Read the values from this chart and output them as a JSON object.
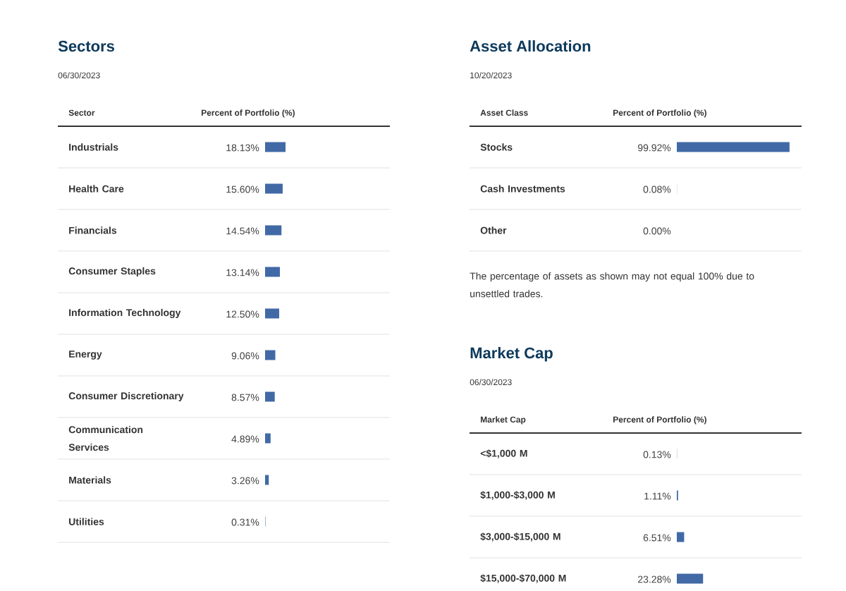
{
  "chart_data": [
    {
      "type": "bar",
      "orientation": "horizontal",
      "title": "Sectors",
      "subtitle": "06/30/2023",
      "ylabel": "Sector",
      "xlabel": "Percent of Portfolio (%)",
      "color": "#4169a6",
      "categories": [
        "Industrials",
        "Health Care",
        "Financials",
        "Consumer Staples",
        "Information Technology",
        "Energy",
        "Consumer Discretionary",
        "Communication Services",
        "Materials",
        "Utilities"
      ],
      "values": [
        18.13,
        15.6,
        14.54,
        13.14,
        12.5,
        9.06,
        8.57,
        4.89,
        3.26,
        0.31
      ],
      "value_labels": [
        "18.13%",
        "15.60%",
        "14.54%",
        "13.14%",
        "12.50%",
        "9.06%",
        "8.57%",
        "4.89%",
        "3.26%",
        "0.31%"
      ]
    },
    {
      "type": "bar",
      "orientation": "horizontal",
      "title": "Asset Allocation",
      "subtitle": "10/20/2023",
      "ylabel": "Asset Class",
      "xlabel": "Percent of Portfolio (%)",
      "color": "#4169a6",
      "categories": [
        "Stocks",
        "Cash Investments",
        "Other"
      ],
      "values": [
        99.92,
        0.08,
        0.0
      ],
      "value_labels": [
        "99.92%",
        "0.08%",
        "0.00%"
      ],
      "annotations": [
        "The percentage of assets as shown may not equal 100% due to unsettled trades."
      ]
    },
    {
      "type": "bar",
      "orientation": "horizontal",
      "title": "Market Cap",
      "subtitle": "06/30/2023",
      "ylabel": "Market Cap",
      "xlabel": "Percent of Portfolio (%)",
      "color": "#4169a6",
      "categories": [
        "<$1,000 M",
        "$1,000-$3,000 M",
        "$3,000-$15,000 M",
        "$15,000-$70,000 M"
      ],
      "values": [
        0.13,
        1.11,
        6.51,
        23.28
      ],
      "value_labels": [
        "0.13%",
        "1.11%",
        "6.51%",
        "23.28%"
      ]
    }
  ]
}
